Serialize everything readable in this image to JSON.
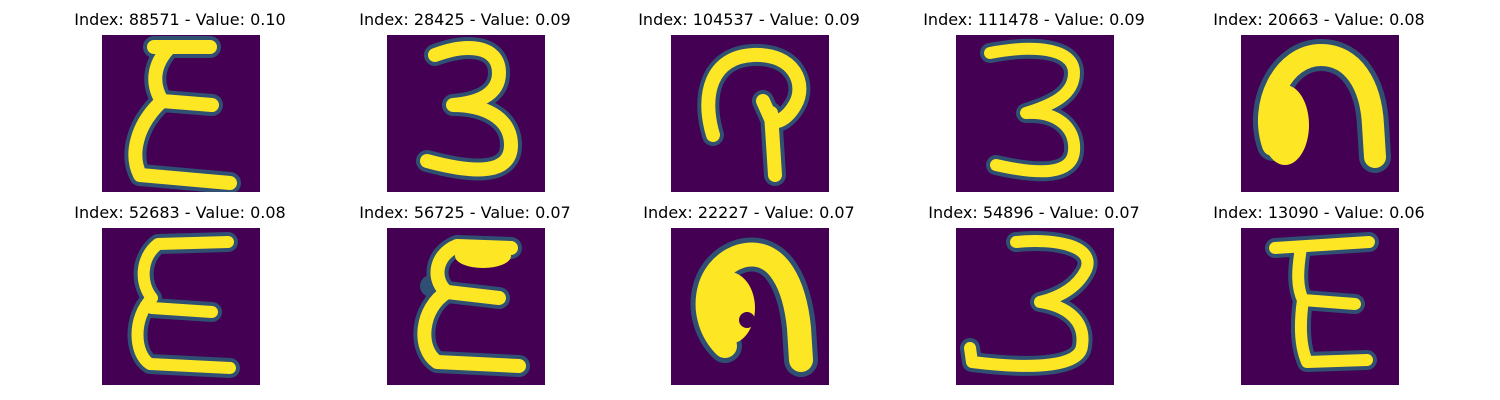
{
  "colors": {
    "background": "#440154",
    "stroke_core": "#fde725",
    "stroke_edge": "#21918c",
    "stroke_mid": "#5ec962"
  },
  "panels": [
    {
      "title": "Index: 88571 - Value: 0.10",
      "glyph": "epsilon"
    },
    {
      "title": "Index: 28425 - Value: 0.09",
      "glyph": "three"
    },
    {
      "title": "Index: 104537 - Value: 0.09",
      "glyph": "hook"
    },
    {
      "title": "Index: 111478 - Value: 0.09",
      "glyph": "three-b"
    },
    {
      "title": "Index: 20663 - Value: 0.08",
      "glyph": "blob-n"
    },
    {
      "title": "Index: 52683 - Value: 0.08",
      "glyph": "epsilon-b"
    },
    {
      "title": "Index: 56725 - Value: 0.07",
      "glyph": "epsilon-c"
    },
    {
      "title": "Index: 22227 - Value: 0.07",
      "glyph": "blob-n-b"
    },
    {
      "title": "Index: 54896 - Value: 0.07",
      "glyph": "three-c"
    },
    {
      "title": "Index: 13090 - Value: 0.06",
      "glyph": "e-block"
    }
  ]
}
